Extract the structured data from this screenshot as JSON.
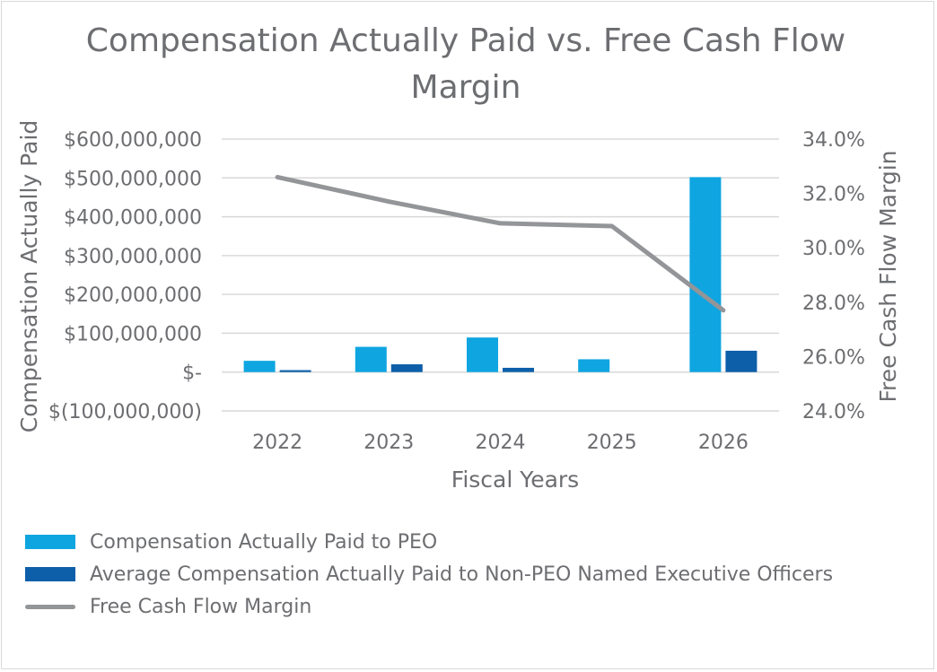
{
  "chart_data": {
    "type": "bar",
    "title": "Compensation Actually Paid vs. Free Cash Flow Margin",
    "xlabel": "Fiscal Years",
    "ylabel": "Compensation Actually Paid",
    "y2label": "Free Cash Flow Margin",
    "categories": [
      "2022",
      "2023",
      "2024",
      "2025",
      "2026"
    ],
    "ylim": [
      -100000000,
      600000000
    ],
    "y2lim": [
      24.0,
      34.0
    ],
    "y_ticks": [
      "$(100,000,000)",
      "$-",
      "$100,000,000",
      "$200,000,000",
      "$300,000,000",
      "$400,000,000",
      "$500,000,000",
      "$600,000,000"
    ],
    "y2_ticks": [
      "24.0%",
      "26.0%",
      "28.0%",
      "30.0%",
      "32.0%",
      "34.0%"
    ],
    "grid": true,
    "legend_position": "bottom-left",
    "series": [
      {
        "name": "Compensation Actually Paid to PEO",
        "type": "bar",
        "axis": "left",
        "color": "#0ea5e1",
        "values": [
          29000000,
          65000000,
          89000000,
          33000000,
          502000000
        ]
      },
      {
        "name": "Average Compensation Actually Paid to Non-PEO Named Executive Officers",
        "type": "bar",
        "axis": "left",
        "color": "#0d5fa9",
        "values": [
          5000000,
          20000000,
          11000000,
          0,
          55000000
        ]
      },
      {
        "name": "Free Cash Flow Margin",
        "type": "line",
        "axis": "right",
        "color": "#939598",
        "values": [
          32.6,
          31.7,
          30.9,
          30.8,
          27.7
        ]
      }
    ]
  }
}
